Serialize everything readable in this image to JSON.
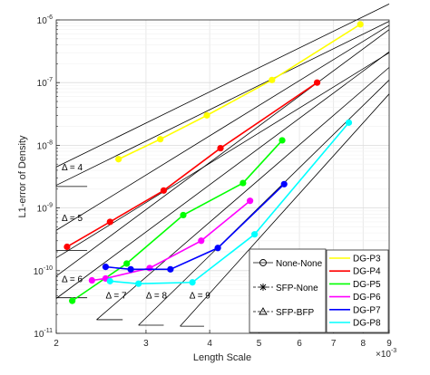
{
  "chart_data": {
    "type": "line",
    "xlabel": "Length Scale",
    "ylabel": "L1-error of Density",
    "x_scale": "log",
    "y_scale": "log",
    "x_exponent_label": "×10",
    "x_exponent_power": "-3",
    "xlim": [
      2,
      9
    ],
    "ylim": [
      1e-11,
      1e-06
    ],
    "x_ticks": [
      2,
      3,
      4,
      5,
      6,
      7,
      8,
      9
    ],
    "x_tick_labels": [
      "2",
      "3",
      "4",
      "5",
      "6",
      "7",
      "8",
      "9"
    ],
    "y_ticks": [
      1e-11,
      1e-10,
      1e-09,
      1e-08,
      1e-07,
      1e-06
    ],
    "y_tick_base": "10",
    "y_tick_powers": [
      "-11",
      "-10",
      "-9",
      "-8",
      "-7",
      "-6"
    ],
    "grid": true,
    "series": [
      {
        "name": "DG-P3",
        "color": "#ffff00",
        "x": [
          2.65,
          3.2,
          3.95,
          5.3,
          7.9
        ],
        "y": [
          6e-09,
          1.25e-08,
          3e-08,
          1.1e-07,
          8.5e-07
        ]
      },
      {
        "name": "DG-P4",
        "color": "#ff0000",
        "x": [
          2.1,
          2.55,
          3.25,
          4.2,
          6.5
        ],
        "y": [
          2.4e-10,
          6e-10,
          1.9e-09,
          9e-09,
          1e-07
        ]
      },
      {
        "name": "DG-P5",
        "color": "#00ff00",
        "x": [
          2.15,
          2.75,
          3.55,
          4.65,
          5.55
        ],
        "y": [
          3.3e-11,
          1.3e-10,
          7.7e-10,
          2.5e-09,
          1.2e-08
        ]
      },
      {
        "name": "DG-P6",
        "color": "#ff00ff",
        "x": [
          2.35,
          2.5,
          3.05,
          3.85,
          4.8
        ],
        "y": [
          7e-11,
          7.5e-11,
          1.1e-10,
          3e-10,
          1.3e-09
        ]
      },
      {
        "name": "DG-P7",
        "color": "#0000ff",
        "x": [
          2.5,
          2.8,
          3.35,
          4.15,
          5.6
        ],
        "y": [
          1.15e-10,
          1.05e-10,
          1.05e-10,
          2.3e-10,
          2.4e-09
        ]
      },
      {
        "name": "DG-P8",
        "color": "#00ffff",
        "x": [
          2.55,
          2.9,
          3.7,
          4.9,
          7.5
        ],
        "y": [
          6.8e-11,
          6.2e-11,
          6.5e-11,
          3.8e-10,
          2.3e-08
        ]
      }
    ],
    "reference_lines": [
      {
        "slope": 4,
        "x": [
          2,
          9
        ],
        "y": [
          4.5e-09,
          1.8e-06
        ]
      },
      {
        "slope": 4,
        "x": [
          2,
          9
        ],
        "y": [
          2.3e-09,
          9.5e-07
        ]
      },
      {
        "slope": 5,
        "x": [
          2,
          9
        ],
        "y": [
          4.4e-10,
          8.2e-07
        ]
      },
      {
        "slope": 5,
        "x": [
          2,
          9
        ],
        "y": [
          1.6e-10,
          3e-07
        ]
      },
      {
        "slope": 6,
        "x": [
          2,
          9
        ],
        "y": [
          8.2e-11,
          7e-07
        ]
      },
      {
        "slope": 6,
        "x": [
          2,
          9
        ],
        "y": [
          3.6e-11,
          3.1e-07
        ]
      },
      {
        "slope": 7,
        "x": [
          2.4,
          9
        ],
        "y": [
          1.65e-11,
          1.75e-07
        ]
      },
      {
        "slope": 8,
        "x": [
          2.9,
          9
        ],
        "y": [
          1.35e-11,
          1.1e-07
        ]
      },
      {
        "slope": 9,
        "x": [
          3.5,
          9
        ],
        "y": [
          1.3e-11,
          6.6e-08
        ]
      }
    ],
    "slope_annotations": [
      {
        "label": "Δ = 4",
        "x": 2.05,
        "y": 4e-09,
        "tri_x": [
          2.0,
          2.3
        ],
        "tri_y": [
          4.5e-09,
          2.2e-09
        ]
      },
      {
        "label": "Δ = 5",
        "x": 2.05,
        "y": 6.2e-10,
        "tri_x": [
          2.0,
          2.3
        ],
        "tri_y": [
          4.4e-10,
          2.1e-10
        ]
      },
      {
        "label": "Δ = 6",
        "x": 2.05,
        "y": 6.5e-11,
        "tri_x": [
          2.0,
          2.3
        ],
        "tri_y": [
          8.2e-11,
          3.7e-11
        ]
      },
      {
        "label": "Δ = 7",
        "x": 2.5,
        "y": 3.6e-11,
        "tri_x": [
          2.4,
          2.7
        ],
        "tri_y": [
          1.65e-11,
          3.7e-11
        ]
      },
      {
        "label": "Δ = 8",
        "x": 3.0,
        "y": 3.6e-11,
        "tri_x": [
          2.9,
          3.25
        ],
        "tri_y": [
          1.35e-11,
          3.7e-11
        ]
      },
      {
        "label": "Δ = 9",
        "x": 3.65,
        "y": 3.6e-11,
        "tri_x": [
          3.5,
          3.9
        ],
        "tri_y": [
          1.3e-11,
          3.8e-11
        ]
      }
    ],
    "legend_markers": [
      {
        "label": "None-None",
        "marker": "circle"
      },
      {
        "label": "SFP-None",
        "marker": "asterisk"
      },
      {
        "label": "SFP-BFP",
        "marker": "triangle"
      }
    ],
    "legend_placement": "bottom-right"
  }
}
